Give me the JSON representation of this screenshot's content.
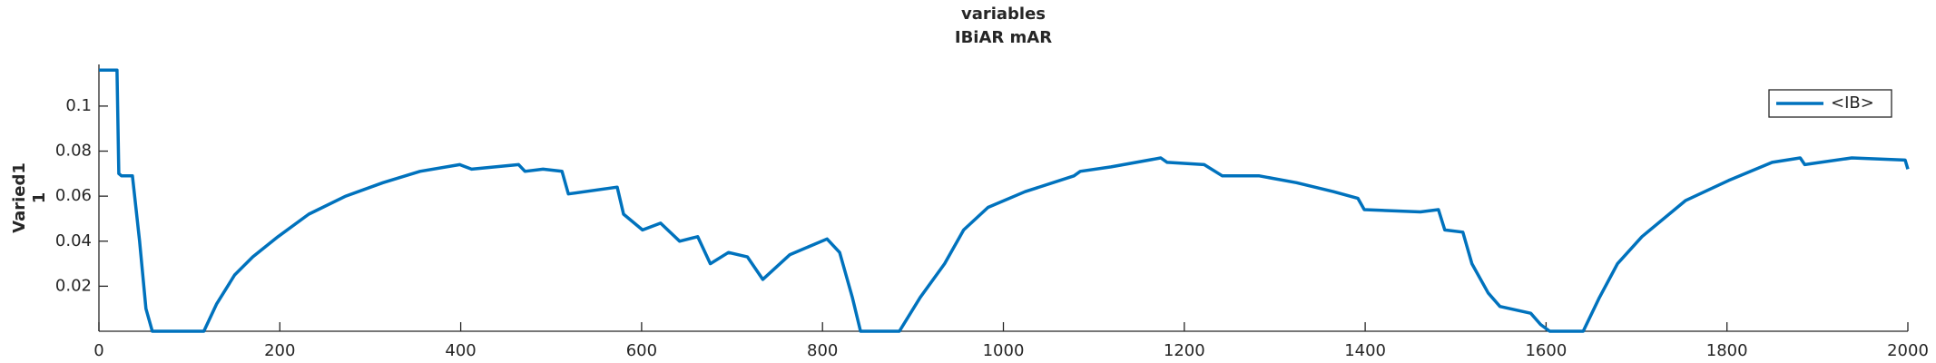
{
  "chart_data": {
    "type": "line",
    "title": [
      "variables",
      "IBiAR mAR"
    ],
    "ylabel": [
      "Varied1",
      "1"
    ],
    "x": [
      0,
      10,
      20,
      22,
      25,
      37,
      45,
      52,
      59,
      116,
      130,
      150,
      170,
      198,
      232,
      273,
      314,
      355,
      399,
      412,
      464,
      471,
      491,
      512,
      519,
      573,
      580,
      601,
      621,
      642,
      662,
      676,
      696,
      717,
      734,
      764,
      805,
      819,
      833,
      842,
      885,
      908,
      935,
      956,
      983,
      1024,
      1078,
      1085,
      1119,
      1174,
      1181,
      1222,
      1242,
      1283,
      1324,
      1365,
      1392,
      1399,
      1461,
      1481,
      1488,
      1508,
      1518,
      1536,
      1549,
      1583,
      1594,
      1604,
      1641,
      1659,
      1679,
      1706,
      1754,
      1802,
      1850,
      1881,
      1886,
      1938,
      1997,
      2000
    ],
    "series": [
      {
        "name": "<IB>",
        "color": "#0072BD",
        "values": [
          0.116,
          0.116,
          0.116,
          0.07,
          0.069,
          0.069,
          0.04,
          0.01,
          0,
          0,
          0.012,
          0.025,
          0.033,
          0.042,
          0.052,
          0.06,
          0.066,
          0.071,
          0.074,
          0.072,
          0.074,
          0.071,
          0.072,
          0.071,
          0.061,
          0.064,
          0.052,
          0.045,
          0.048,
          0.04,
          0.042,
          0.03,
          0.035,
          0.033,
          0.023,
          0.034,
          0.041,
          0.035,
          0.015,
          0,
          0,
          0.015,
          0.03,
          0.045,
          0.055,
          0.062,
          0.069,
          0.071,
          0.073,
          0.077,
          0.075,
          0.074,
          0.069,
          0.069,
          0.066,
          0.062,
          0.059,
          0.054,
          0.053,
          0.054,
          0.045,
          0.044,
          0.03,
          0.017,
          0.011,
          0.008,
          0.003,
          0,
          0,
          0.015,
          0.03,
          0.042,
          0.058,
          0.067,
          0.075,
          0.077,
          0.074,
          0.077,
          0.076,
          0.072
        ]
      }
    ],
    "xlim": [
      0,
      2000
    ],
    "xticks": [
      0,
      200,
      400,
      600,
      800,
      1000,
      1200,
      1400,
      1600,
      1800,
      2000
    ],
    "ylim": [
      0,
      0.1185
    ],
    "yticks": [
      0.02,
      0.04,
      0.06,
      0.08,
      0.1
    ],
    "legend": "upper right"
  }
}
